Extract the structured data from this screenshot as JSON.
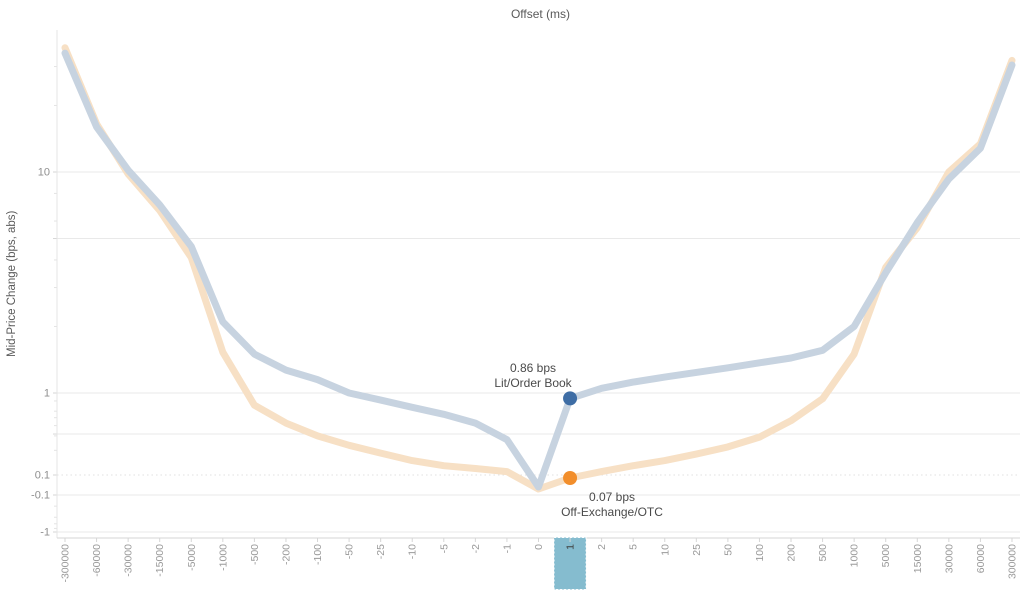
{
  "title": "Offset (ms)",
  "y_axis_title": "Mid-Price Change (bps, abs)",
  "colors": {
    "background": "#ffffff",
    "lit_line": "#c7d3e0",
    "otc_line": "#f7e0c5",
    "lit_point": "#3e6da5",
    "otc_point": "#f28e2b",
    "highlight_box": "#85bccf",
    "gridline": "#e9e9e9",
    "axis_line": "#d6d6d6",
    "tick_label": "#9a9a9a",
    "selected_tick_label": "#3f3f3f",
    "annotation_text": "#4a4a4a"
  },
  "chart_data": {
    "type": "line",
    "title": "Offset (ms)",
    "xlabel": "Offset (ms)",
    "ylabel": "Mid-Price Change (bps, abs)",
    "x_scale": "categorical symmetric-log offsets",
    "y_scale": "symmetric-log",
    "ylim": [
      -1,
      40
    ],
    "grid": "horizontal only",
    "legend_position": "none (inline annotations)",
    "categories": [
      "-300000",
      "-60000",
      "-30000",
      "-15000",
      "-5000",
      "-1000",
      "-500",
      "-200",
      "-100",
      "-50",
      "-25",
      "-10",
      "-5",
      "-2",
      "-1",
      "0",
      "1",
      "2",
      "5",
      "10",
      "25",
      "50",
      "100",
      "200",
      "500",
      "1000",
      "5000",
      "15000",
      "30000",
      "60000",
      "300000"
    ],
    "highlighted_category": "1",
    "y_ticks": [
      {
        "value": 10,
        "label": "10",
        "dashed": false
      },
      {
        "value": 5,
        "label": "",
        "dashed": false
      },
      {
        "value": 1,
        "label": "1",
        "dashed": false
      },
      {
        "value": 0.316,
        "label": "",
        "dashed": false
      },
      {
        "value": 0.1,
        "label": "0.1",
        "dashed": true
      },
      {
        "value": -0.1,
        "label": "-0.1",
        "dashed": false
      },
      {
        "value": -1,
        "label": "-1",
        "dashed": false
      }
    ],
    "y_minor_tick_values": [
      30,
      20,
      8,
      6,
      4,
      3,
      2,
      0.8,
      0.6,
      0.5,
      0.4,
      0.3,
      0.2,
      -0.2,
      -0.4,
      -0.6,
      -0.8
    ],
    "series": [
      {
        "name": "Off-Exchange/OTC",
        "values": [
          36.5,
          16.5,
          9.8,
          6.7,
          4.1,
          1.53,
          0.71,
          0.43,
          0.3,
          0.23,
          0.185,
          0.15,
          0.13,
          0.12,
          0.11,
          -0.04,
          0.07,
          0.11,
          0.13,
          0.15,
          0.18,
          0.22,
          0.29,
          0.46,
          0.85,
          1.5,
          3.7,
          5.6,
          10.0,
          13.4,
          32.0
        ]
      },
      {
        "name": "Lit/Order Book",
        "values": [
          34.5,
          16.0,
          10.2,
          7.1,
          4.6,
          2.1,
          1.5,
          1.27,
          1.15,
          1.0,
          0.82,
          0.67,
          0.55,
          0.43,
          0.27,
          -0.02,
          0.86,
          1.05,
          1.12,
          1.18,
          1.24,
          1.3,
          1.37,
          1.44,
          1.56,
          2.0,
          3.5,
          5.9,
          9.3,
          12.8,
          30.5
        ]
      }
    ],
    "marked_points": [
      {
        "series": "Lit/Order Book",
        "category": "1",
        "value": 0.86
      },
      {
        "series": "Off-Exchange/OTC",
        "category": "1",
        "value": 0.07
      }
    ],
    "annotations": [
      {
        "line1": "0.86 bps",
        "line2": "Lit/Order Book"
      },
      {
        "line1": "0.07 bps",
        "line2": "Off-Exchange/OTC"
      }
    ]
  }
}
